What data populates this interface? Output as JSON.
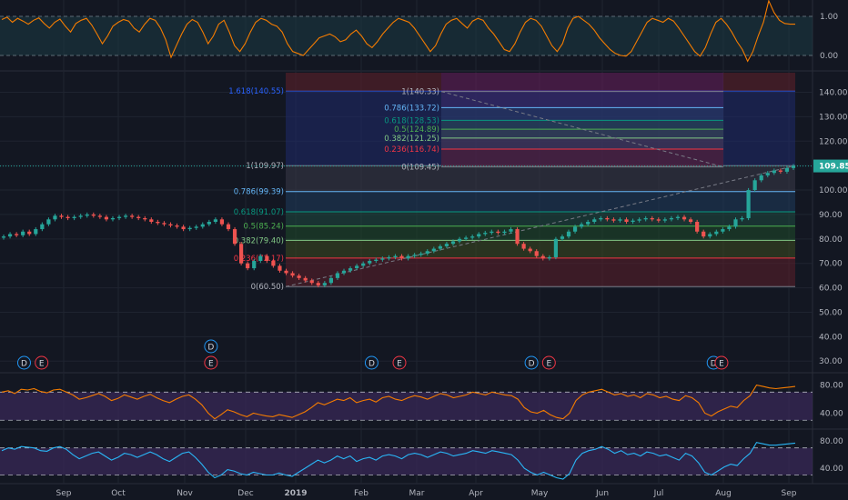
{
  "colors": {
    "bg": "#131722",
    "grid": "#1f2430",
    "axis_text": "#b2b5be",
    "up": "#26a69a",
    "down": "#ef5350",
    "rsi_orange": "#f57c00",
    "rsi_blue": "#29b6f6",
    "osc_fill": "#3b2a5a",
    "top_fill": "#1b3a44",
    "price_badge": "#26a69a",
    "fib_dots": "#6b7080"
  },
  "chart_data": [
    {
      "type": "line",
      "name": "top-oscillator",
      "y_ticks": [
        "1.00",
        "0.00"
      ],
      "ylim": [
        -0.35,
        1.35
      ],
      "values": [
        0.92,
        0.98,
        0.85,
        0.95,
        0.88,
        0.8,
        0.9,
        0.96,
        0.82,
        0.7,
        0.85,
        0.93,
        0.75,
        0.6,
        0.82,
        0.9,
        0.95,
        0.78,
        0.55,
        0.3,
        0.5,
        0.75,
        0.85,
        0.92,
        0.88,
        0.7,
        0.6,
        0.8,
        0.95,
        0.9,
        0.7,
        0.4,
        -0.05,
        0.25,
        0.55,
        0.8,
        0.92,
        0.85,
        0.6,
        0.3,
        0.5,
        0.8,
        0.9,
        0.6,
        0.25,
        0.1,
        0.3,
        0.6,
        0.85,
        0.95,
        0.9,
        0.8,
        0.75,
        0.6,
        0.3,
        0.1,
        0.05,
        0.0,
        0.15,
        0.3,
        0.45,
        0.5,
        0.55,
        0.48,
        0.35,
        0.4,
        0.55,
        0.65,
        0.5,
        0.3,
        0.2,
        0.35,
        0.55,
        0.7,
        0.85,
        0.95,
        0.9,
        0.85,
        0.7,
        0.5,
        0.3,
        0.1,
        0.25,
        0.55,
        0.8,
        0.9,
        0.95,
        0.82,
        0.7,
        0.88,
        0.95,
        0.9,
        0.7,
        0.55,
        0.35,
        0.15,
        0.1,
        0.3,
        0.6,
        0.85,
        0.95,
        0.9,
        0.75,
        0.5,
        0.25,
        0.1,
        0.3,
        0.7,
        0.95,
        1.0,
        0.9,
        0.8,
        0.65,
        0.45,
        0.3,
        0.15,
        0.05,
        0.0,
        -0.02,
        0.1,
        0.35,
        0.6,
        0.85,
        0.95,
        0.9,
        0.85,
        0.95,
        0.88,
        0.7,
        0.5,
        0.3,
        0.1,
        -0.02,
        0.2,
        0.55,
        0.85,
        0.95,
        0.8,
        0.6,
        0.35,
        0.15,
        -0.15,
        0.1,
        0.5,
        0.85,
        1.4,
        1.1,
        0.9,
        0.82,
        0.8,
        0.8
      ]
    },
    {
      "type": "candlestick",
      "name": "price",
      "x_ticks": [
        "Sep",
        "Oct",
        "Nov",
        "Dec",
        "2019",
        "Feb",
        "Mar",
        "Apr",
        "May",
        "Jun",
        "Jul",
        "Aug",
        "Sep"
      ],
      "y_ticks": [
        "140.00",
        "130.00",
        "120.00",
        "110.00",
        "100.00",
        "90.00",
        "80.00",
        "70.00",
        "60.00",
        "50.00",
        "40.00",
        "30.00"
      ],
      "ylim": [
        26,
        148
      ],
      "last_price": "109.85",
      "closes": [
        81,
        82,
        81.5,
        83,
        82,
        84,
        86,
        88,
        89.5,
        89,
        88.5,
        89,
        89.5,
        90,
        89.5,
        89,
        88,
        88.5,
        89,
        89.5,
        89,
        88.5,
        88,
        87,
        86.5,
        86,
        85.5,
        85,
        84,
        84.5,
        85,
        86,
        87,
        88,
        86,
        84,
        78,
        70,
        68,
        71,
        73,
        71,
        69,
        67,
        66,
        65,
        64,
        63,
        62,
        61,
        62,
        64,
        66,
        67,
        68,
        69,
        70,
        71,
        71.5,
        72,
        72.5,
        73,
        72,
        73,
        73.5,
        74,
        75,
        76,
        77,
        78,
        79,
        80,
        80.5,
        81,
        82,
        82.5,
        83,
        82.5,
        83,
        84,
        78,
        76,
        75,
        73,
        72,
        72.5,
        80,
        81,
        83,
        85,
        86,
        87,
        88,
        88.5,
        88,
        87.5,
        88,
        87,
        87.5,
        88,
        88.5,
        88,
        87.5,
        88,
        88.5,
        89,
        88,
        87,
        83,
        81,
        82,
        83,
        84,
        85,
        88,
        88.5,
        100,
        104,
        106,
        107,
        108,
        107.5,
        109,
        109.85
      ],
      "fib_left": {
        "levels": [
          "0(60.50)",
          "0.236(72.17)",
          "0.382(79.40)",
          "0.5(85.24)",
          "0.618(91.07)",
          "0.786(99.39)",
          "1(109.97)",
          "1.618(140.55)"
        ],
        "values": [
          60.5,
          72.17,
          79.4,
          85.24,
          91.07,
          99.39,
          109.97,
          140.55
        ],
        "colors": [
          "#787b86",
          "#f23645",
          "#81c784",
          "#4caf50",
          "#089981",
          "#64b5f6",
          "#787b86",
          "#2962ff"
        ]
      },
      "fib_right": {
        "levels": [
          "0(109.45)",
          "0.236(116.74)",
          "0.382(121.25)",
          "0.5(124.89)",
          "0.618(128.53)",
          "0.786(133.72)",
          "1(140.33)"
        ],
        "values": [
          109.45,
          116.74,
          121.25,
          124.89,
          128.53,
          133.72,
          140.33
        ],
        "colors": [
          "#787b86",
          "#f23645",
          "#81c784",
          "#4caf50",
          "#089981",
          "#64b5f6",
          "#787b86"
        ]
      },
      "events": [
        {
          "label": "D",
          "kind": "dividend",
          "row": 0,
          "pos": 0.028
        },
        {
          "label": "E",
          "kind": "earnings",
          "row": 0,
          "pos": 0.05
        },
        {
          "label": "D",
          "kind": "dividend",
          "row": 1,
          "pos": 0.263
        },
        {
          "label": "E",
          "kind": "earnings",
          "row": 0,
          "pos": 0.263
        },
        {
          "label": "D",
          "kind": "dividend",
          "row": 0,
          "pos": 0.465
        },
        {
          "label": "E",
          "kind": "earnings",
          "row": 0,
          "pos": 0.5
        },
        {
          "label": "D",
          "kind": "dividend",
          "row": 0,
          "pos": 0.666
        },
        {
          "label": "E",
          "kind": "earnings",
          "row": 0,
          "pos": 0.688
        },
        {
          "label": "D",
          "kind": "dividend",
          "row": 0,
          "pos": 0.895
        },
        {
          "label": "E",
          "kind": "earnings",
          "row": 0,
          "pos": 0.905
        }
      ]
    },
    {
      "type": "line",
      "name": "rsi-orange",
      "y_ticks": [
        "80.00",
        "40.00"
      ],
      "ylim": [
        20,
        95
      ],
      "bands": [
        70,
        30
      ],
      "values": [
        70,
        72,
        68,
        74,
        73,
        75,
        71,
        69,
        73,
        74,
        70,
        66,
        60,
        62,
        65,
        68,
        64,
        58,
        61,
        66,
        63,
        60,
        64,
        67,
        62,
        58,
        55,
        60,
        64,
        66,
        60,
        52,
        40,
        32,
        38,
        45,
        42,
        38,
        35,
        40,
        38,
        36,
        35,
        38,
        36,
        34,
        38,
        42,
        48,
        55,
        52,
        56,
        60,
        58,
        62,
        55,
        58,
        60,
        56,
        62,
        64,
        60,
        58,
        62,
        65,
        63,
        60,
        64,
        68,
        66,
        62,
        64,
        66,
        70,
        68,
        66,
        70,
        68,
        66,
        65,
        60,
        48,
        42,
        40,
        44,
        38,
        34,
        32,
        40,
        58,
        66,
        70,
        72,
        74,
        70,
        66,
        68,
        64,
        66,
        62,
        68,
        66,
        62,
        64,
        60,
        58,
        65,
        62,
        55,
        40,
        36,
        42,
        46,
        50,
        48,
        58,
        65,
        80,
        78,
        76,
        75,
        76,
        77,
        78
      ]
    },
    {
      "type": "line",
      "name": "rsi-blue",
      "y_ticks": [
        "80.00",
        "40.00"
      ],
      "ylim": [
        20,
        95
      ],
      "bands": [
        70,
        30
      ],
      "values": [
        66,
        70,
        68,
        72,
        71,
        70,
        66,
        65,
        70,
        72,
        68,
        60,
        54,
        58,
        62,
        64,
        58,
        52,
        56,
        62,
        60,
        56,
        60,
        64,
        60,
        54,
        50,
        56,
        62,
        64,
        56,
        46,
        34,
        26,
        30,
        38,
        36,
        32,
        30,
        34,
        32,
        30,
        30,
        33,
        30,
        28,
        34,
        40,
        46,
        52,
        48,
        52,
        58,
        54,
        58,
        50,
        54,
        56,
        52,
        58,
        60,
        58,
        54,
        60,
        62,
        60,
        56,
        60,
        64,
        62,
        58,
        60,
        62,
        66,
        64,
        62,
        66,
        64,
        62,
        60,
        52,
        40,
        34,
        30,
        34,
        30,
        26,
        24,
        32,
        52,
        62,
        66,
        68,
        72,
        68,
        62,
        66,
        60,
        62,
        58,
        64,
        62,
        58,
        60,
        56,
        52,
        62,
        58,
        48,
        34,
        30,
        36,
        42,
        46,
        44,
        54,
        62,
        78,
        76,
        74,
        74,
        75,
        76,
        77
      ]
    }
  ]
}
